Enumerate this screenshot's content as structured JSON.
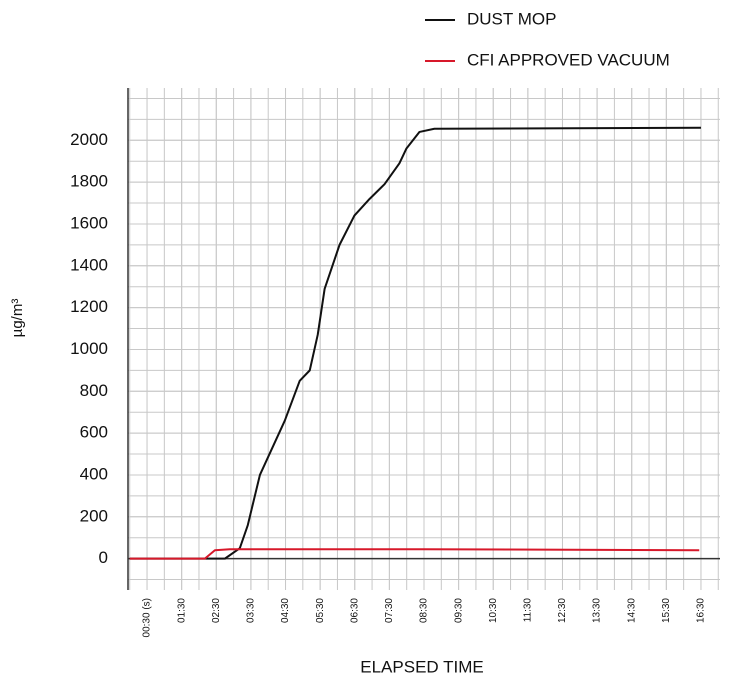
{
  "chart_data": {
    "type": "line",
    "x_label": "ELAPSED TIME",
    "y_label": "µg/m³",
    "xlim": [
      -0.05,
      17.05
    ],
    "ylim": [
      -150,
      2250
    ],
    "xticks": [
      {
        "value": 0.5,
        "label": "00:30 (s)"
      },
      {
        "value": 1.5,
        "label": "01:30"
      },
      {
        "value": 2.5,
        "label": "02:30"
      },
      {
        "value": 3.5,
        "label": "03:30"
      },
      {
        "value": 4.5,
        "label": "04:30"
      },
      {
        "value": 5.5,
        "label": "05:30"
      },
      {
        "value": 6.5,
        "label": "06:30"
      },
      {
        "value": 7.5,
        "label": "07:30"
      },
      {
        "value": 8.5,
        "label": "08:30"
      },
      {
        "value": 9.5,
        "label": "09:30"
      },
      {
        "value": 10.5,
        "label": "10:30"
      },
      {
        "value": 11.5,
        "label": "11:30"
      },
      {
        "value": 12.5,
        "label": "12:30"
      },
      {
        "value": 13.5,
        "label": "13:30"
      },
      {
        "value": 14.5,
        "label": "14:30"
      },
      {
        "value": 15.5,
        "label": "15:30"
      },
      {
        "value": 16.5,
        "label": "16:30"
      }
    ],
    "yticks": [
      0,
      200,
      400,
      600,
      800,
      1000,
      1200,
      1400,
      1600,
      1800,
      2000
    ],
    "grid": true,
    "legend": "top-right",
    "series": [
      {
        "name": "DUST MOP",
        "color": "#111111",
        "x": [
          0,
          2.75,
          3.18,
          3.41,
          3.76,
          4.48,
          4.91,
          5.2,
          5.43,
          5.63,
          6.06,
          6.49,
          6.93,
          7.36,
          7.79,
          7.99,
          8.37,
          8.8,
          16.5
        ],
        "values": [
          0,
          0,
          50,
          160,
          400,
          660,
          850,
          900,
          1070,
          1290,
          1500,
          1640,
          1720,
          1790,
          1890,
          1960,
          2040,
          2055,
          2060
        ]
      },
      {
        "name": "CFI APPROVED VACUUM",
        "color": "#d7182a",
        "x": [
          0,
          2.17,
          2.46,
          2.89,
          8.5,
          16.45
        ],
        "values": [
          0,
          0,
          40,
          45,
          45,
          40
        ]
      }
    ]
  }
}
